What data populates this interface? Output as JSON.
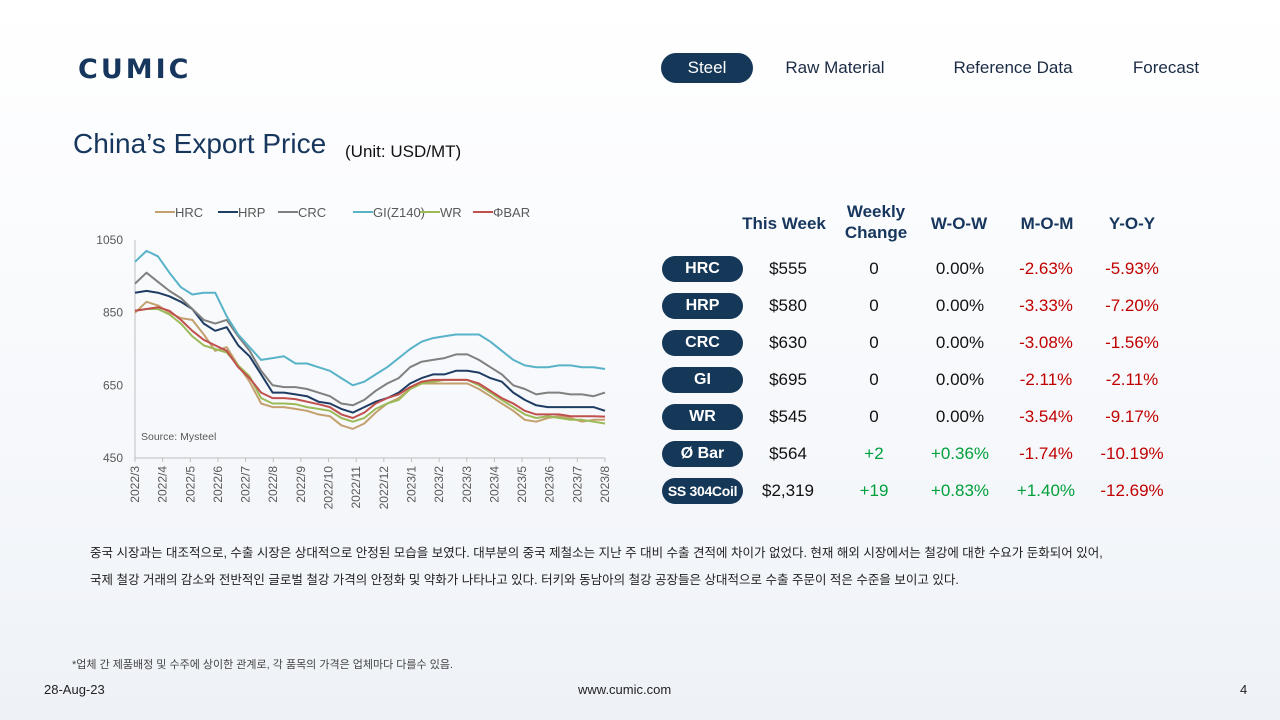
{
  "header": {
    "logo": "CUMIC",
    "nav": [
      "Steel",
      "Raw Material",
      "Reference Data",
      "Forecast"
    ],
    "active_nav": "Steel"
  },
  "page": {
    "title": "China’s Export Price",
    "unit": "(Unit: USD/MT)"
  },
  "chart_data": {
    "type": "line",
    "source_note": "Source: Mysteel",
    "ylim": [
      450,
      1050
    ],
    "yticks": [
      450,
      650,
      850,
      1050
    ],
    "grid": false,
    "legend_position": "top",
    "x_ticks": [
      "2022/3",
      "2022/4",
      "2022/5",
      "2022/6",
      "2022/7",
      "2022/8",
      "2022/9",
      "2022/10",
      "2022/11",
      "2022/12",
      "2023/1",
      "2023/2",
      "2023/3",
      "2023/4",
      "2023/5",
      "2023/6",
      "2023/7",
      "2023/8"
    ],
    "series": [
      {
        "name": "HRC",
        "color": "#c4a06e",
        "values": [
          850,
          880,
          870,
          850,
          835,
          830,
          790,
          745,
          755,
          705,
          660,
          600,
          590,
          590,
          585,
          580,
          570,
          565,
          540,
          530,
          545,
          575,
          600,
          615,
          640,
          655,
          655,
          655,
          655,
          655,
          640,
          620,
          600,
          580,
          555,
          550,
          560,
          565,
          560,
          550,
          555,
          555
        ]
      },
      {
        "name": "HRP",
        "color": "#1f3c63",
        "values": [
          905,
          910,
          905,
          895,
          880,
          860,
          820,
          800,
          810,
          760,
          730,
          680,
          630,
          630,
          625,
          620,
          605,
          600,
          585,
          575,
          590,
          605,
          615,
          630,
          655,
          670,
          680,
          680,
          690,
          690,
          685,
          670,
          660,
          630,
          610,
          595,
          590,
          590,
          590,
          590,
          590,
          580
        ]
      },
      {
        "name": "CRC",
        "color": "#808080",
        "values": [
          930,
          960,
          935,
          910,
          890,
          860,
          830,
          820,
          830,
          785,
          745,
          690,
          650,
          645,
          645,
          640,
          630,
          620,
          600,
          595,
          610,
          635,
          655,
          670,
          700,
          715,
          720,
          725,
          735,
          735,
          720,
          700,
          680,
          650,
          640,
          625,
          630,
          630,
          625,
          625,
          620,
          630
        ]
      },
      {
        "name": "GI(Z140)",
        "color": "#58b3c8",
        "values": [
          990,
          1020,
          1005,
          960,
          920,
          900,
          905,
          905,
          840,
          790,
          755,
          720,
          725,
          730,
          710,
          710,
          700,
          690,
          670,
          650,
          660,
          680,
          700,
          725,
          750,
          770,
          780,
          785,
          790,
          790,
          790,
          770,
          745,
          720,
          705,
          700,
          700,
          705,
          705,
          700,
          700,
          695
        ]
      },
      {
        "name": "WR",
        "color": "#9cbb58",
        "values": [
          855,
          860,
          860,
          845,
          820,
          785,
          760,
          750,
          740,
          705,
          675,
          615,
          600,
          600,
          598,
          590,
          585,
          580,
          560,
          550,
          560,
          585,
          600,
          610,
          640,
          655,
          660,
          665,
          665,
          665,
          650,
          630,
          610,
          590,
          570,
          560,
          565,
          560,
          555,
          555,
          550,
          545
        ]
      },
      {
        "name": "ΦBAR",
        "color": "#c0504d",
        "values": [
          855,
          860,
          865,
          855,
          830,
          800,
          775,
          760,
          745,
          700,
          670,
          630,
          615,
          615,
          612,
          605,
          598,
          590,
          570,
          560,
          575,
          600,
          615,
          625,
          645,
          660,
          665,
          665,
          665,
          665,
          655,
          635,
          615,
          600,
          580,
          570,
          570,
          570,
          565,
          565,
          565,
          564
        ]
      }
    ]
  },
  "table": {
    "headers": [
      "This Week",
      "Weekly\nChange",
      "W-O-W",
      "M-O-M",
      "Y-O-Y"
    ],
    "rows": [
      {
        "product": "HRC",
        "price": "$555",
        "change": "0",
        "wow": "0.00%",
        "mom": "-2.63%",
        "yoy": "-5.93%"
      },
      {
        "product": "HRP",
        "price": "$580",
        "change": "0",
        "wow": "0.00%",
        "mom": "-3.33%",
        "yoy": "-7.20%"
      },
      {
        "product": "CRC",
        "price": "$630",
        "change": "0",
        "wow": "0.00%",
        "mom": "-3.08%",
        "yoy": "-1.56%"
      },
      {
        "product": "GI",
        "price": "$695",
        "change": "0",
        "wow": "0.00%",
        "mom": "-2.11%",
        "yoy": "-2.11%"
      },
      {
        "product": "WR",
        "price": "$545",
        "change": "0",
        "wow": "0.00%",
        "mom": "-3.54%",
        "yoy": "-9.17%"
      },
      {
        "product": "Ø Bar",
        "price": "$564",
        "change": "+2",
        "wow": "+0.36%",
        "mom": "-1.74%",
        "yoy": "-10.19%"
      },
      {
        "product": "SS 304Coil",
        "price": "$2,319",
        "change": "+19",
        "wow": "+0.83%",
        "mom": "+1.40%",
        "yoy": "-12.69%"
      }
    ],
    "colors": {
      "negative": "#c00000",
      "positive": "#00a03c",
      "neutral": "#111111",
      "pill": "#163858"
    }
  },
  "commentary": [
    "중국 시장과는 대조적으로, 수출 시장은 상대적으로 안정된 모습을 보였다. 대부분의 중국 제철소는 지난 주 대비  수출 견적에 차이가 없었다. 현재 해외 시장에서는 철강에 대한 수요가 둔화되어 있어,",
    "국제 철강 거래의 감소와 전반적인 글로벌 철강 가격의 안정화 및 약화가 나타나고 있다. 터키와 동남아의 철강 공장들은 상대적으로 수출 주문이 적은 수준을 보이고 있다."
  ],
  "footnote": "*업체 간 제품배정 및 수주에 상이한 관계로, 각 품목의 가격은 업체마다 다를수 있음.",
  "footer": {
    "date": "28-Aug-23",
    "url": "www.cumic.com",
    "page": "4"
  }
}
